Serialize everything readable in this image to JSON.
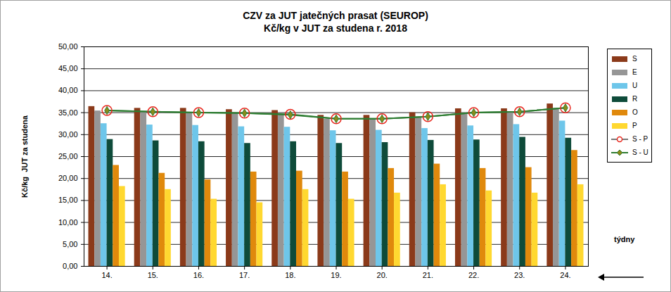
{
  "chart_data": {
    "type": "bar",
    "title": "CZV za JUT jatečných prasat (SEUROP)",
    "subtitle": "Kč/kg v JUT za studena r. 2018",
    "y_label": "Kč/kg  JUT za studena",
    "x_label": "týdny",
    "categories": [
      "14.",
      "15.",
      "16.",
      "17.",
      "18.",
      "19.",
      "20.",
      "21.",
      "22.",
      "23.",
      "24."
    ],
    "series": [
      {
        "name": "S",
        "type": "bar",
        "color": "#8b3a1a",
        "values": [
          36.4,
          36.0,
          36.0,
          35.7,
          35.5,
          34.4,
          34.4,
          35.0,
          35.9,
          35.9,
          37.0
        ]
      },
      {
        "name": "E",
        "type": "bar",
        "color": "#969696",
        "values": [
          35.4,
          35.2,
          35.0,
          34.8,
          34.5,
          33.5,
          33.5,
          34.0,
          34.9,
          35.1,
          36.0
        ]
      },
      {
        "name": "U",
        "type": "bar",
        "color": "#6ec6ea",
        "values": [
          32.5,
          32.2,
          32.1,
          31.8,
          31.7,
          30.9,
          31.0,
          31.4,
          32.0,
          32.3,
          33.1
        ]
      },
      {
        "name": "R",
        "type": "bar",
        "color": "#0e4b3a",
        "values": [
          28.9,
          28.6,
          28.4,
          28.0,
          28.4,
          28.0,
          28.2,
          28.7,
          28.8,
          29.4,
          29.2
        ]
      },
      {
        "name": "O",
        "type": "bar",
        "color": "#e0890c",
        "values": [
          23.0,
          21.2,
          19.7,
          21.5,
          21.7,
          21.5,
          22.3,
          23.3,
          22.3,
          22.5,
          26.4
        ]
      },
      {
        "name": "P",
        "type": "bar",
        "color": "#ffd830",
        "values": [
          18.2,
          17.5,
          15.3,
          14.5,
          17.5,
          15.3,
          16.7,
          18.6,
          17.2,
          16.7,
          18.6
        ]
      },
      {
        "name": "S - P",
        "type": "line",
        "color": "#e8281e",
        "marker": "circle",
        "line_style": "solid",
        "values": [
          35.5,
          35.2,
          35.0,
          34.9,
          34.6,
          33.6,
          33.6,
          34.1,
          35.0,
          35.2,
          36.1
        ]
      },
      {
        "name": "S - U",
        "type": "line",
        "color": "#2e7d32",
        "marker": "diamond",
        "line_style": "solid",
        "values": [
          35.5,
          35.2,
          35.0,
          34.9,
          34.5,
          33.6,
          33.6,
          34.1,
          35.0,
          35.2,
          36.1
        ]
      }
    ],
    "ylim": [
      0,
      50
    ],
    "yticks": [
      {
        "value": 0,
        "label": "0,00"
      },
      {
        "value": 5,
        "label": "5,00"
      },
      {
        "value": 10,
        "label": "10,00"
      },
      {
        "value": 15,
        "label": "15,00"
      },
      {
        "value": 20,
        "label": "20,00"
      },
      {
        "value": 25,
        "label": "25,00"
      },
      {
        "value": 30,
        "label": "30,00"
      },
      {
        "value": 35,
        "label": "35,00"
      },
      {
        "value": 40,
        "label": "40,00"
      },
      {
        "value": 45,
        "label": "45,00"
      },
      {
        "value": 50,
        "label": "50,00"
      }
    ],
    "grid": true,
    "legend": "right"
  }
}
